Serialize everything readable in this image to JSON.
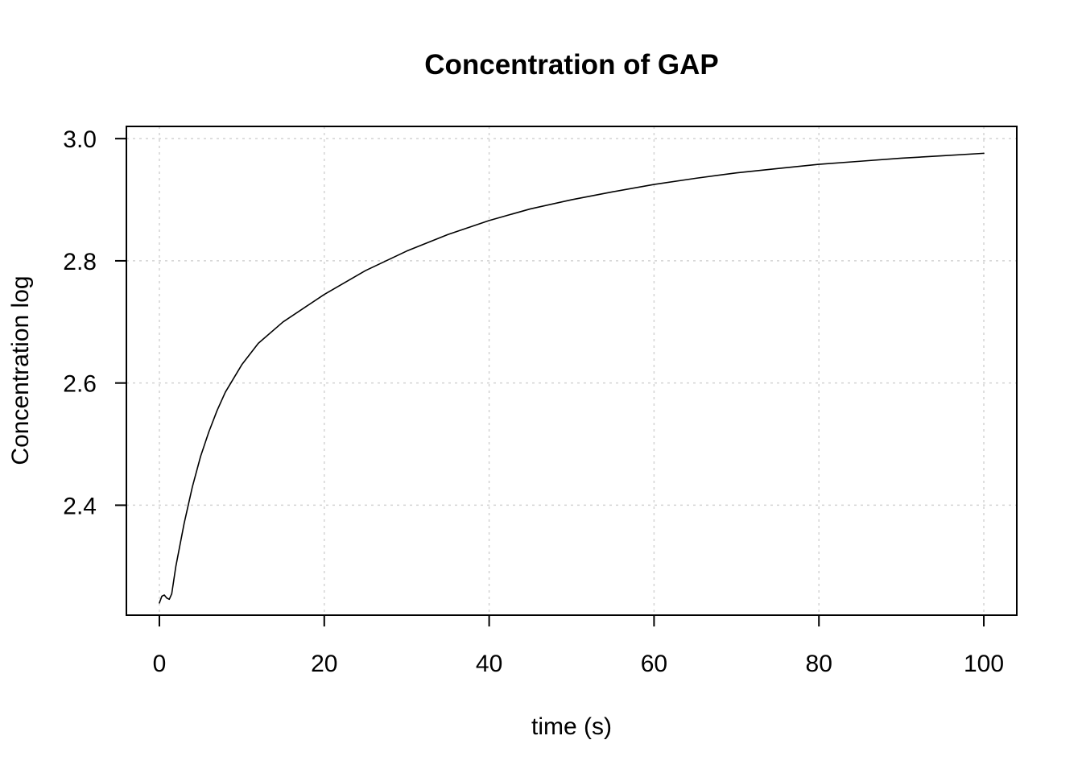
{
  "chart_data": {
    "type": "line",
    "title": "Concentration of GAP",
    "xlabel": "time (s)",
    "ylabel": "Concentration log",
    "xlim": [
      -4,
      104
    ],
    "ylim": [
      2.22,
      3.02
    ],
    "x_ticks": [
      0,
      20,
      40,
      60,
      80,
      100
    ],
    "x_tick_labels": [
      "0",
      "20",
      "40",
      "60",
      "80",
      "100"
    ],
    "y_ticks": [
      2.4,
      2.6,
      2.8,
      3.0
    ],
    "y_tick_labels": [
      "2.4",
      "2.6",
      "2.8",
      "3.0"
    ],
    "grid": true,
    "series": [
      {
        "color": "#000000",
        "x": [
          0,
          0.3,
          0.6,
          0.9,
          1.2,
          1.5,
          2,
          3,
          4,
          5,
          6,
          7,
          8,
          10,
          12,
          15,
          20,
          25,
          30,
          35,
          40,
          45,
          50,
          55,
          60,
          65,
          70,
          75,
          80,
          85,
          90,
          95,
          100
        ],
        "y": [
          2.24,
          2.251,
          2.253,
          2.248,
          2.246,
          2.255,
          2.3,
          2.37,
          2.43,
          2.48,
          2.52,
          2.555,
          2.585,
          2.63,
          2.665,
          2.7,
          2.745,
          2.784,
          2.816,
          2.843,
          2.866,
          2.885,
          2.9,
          2.913,
          2.925,
          2.935,
          2.944,
          2.951,
          2.958,
          2.963,
          2.968,
          2.972,
          2.976
        ]
      }
    ]
  }
}
